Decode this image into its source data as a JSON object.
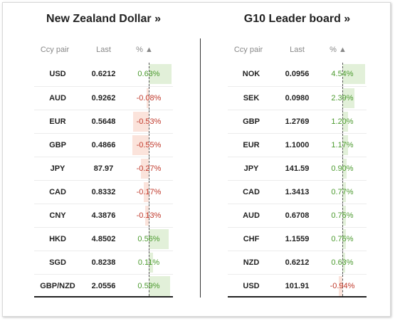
{
  "nzd": {
    "title": "New Zealand Dollar »",
    "headers": {
      "pair": "Ccy pair",
      "last": "Last",
      "pct": "% ▲"
    },
    "rows": [
      {
        "pair": "USD",
        "last": "0.6212",
        "pct": "0.63%",
        "value": 0.63
      },
      {
        "pair": "AUD",
        "last": "0.9262",
        "pct": "-0.08%",
        "value": -0.08
      },
      {
        "pair": "EUR",
        "last": "0.5648",
        "pct": "-0.53%",
        "value": -0.53
      },
      {
        "pair": "GBP",
        "last": "0.4866",
        "pct": "-0.55%",
        "value": -0.55
      },
      {
        "pair": "JPY",
        "last": "87.97",
        "pct": "-0.27%",
        "value": -0.27
      },
      {
        "pair": "CAD",
        "last": "0.8332",
        "pct": "-0.17%",
        "value": -0.17
      },
      {
        "pair": "CNY",
        "last": "4.3876",
        "pct": "-0.13%",
        "value": -0.13
      },
      {
        "pair": "HKD",
        "last": "4.8502",
        "pct": "0.56%",
        "value": 0.56
      },
      {
        "pair": "SGD",
        "last": "0.8238",
        "pct": "0.11%",
        "value": 0.11
      },
      {
        "pair": "GBP/NZD",
        "last": "2.0556",
        "pct": "0.59%",
        "value": 0.59
      }
    ]
  },
  "g10": {
    "title": "G10 Leader board »",
    "headers": {
      "pair": "Ccy pair",
      "last": "Last",
      "pct": "% ▲"
    },
    "rows": [
      {
        "pair": "NOK",
        "last": "0.0956",
        "pct": "4.54%",
        "value": 4.54
      },
      {
        "pair": "SEK",
        "last": "0.0980",
        "pct": "2.39%",
        "value": 2.39
      },
      {
        "pair": "GBP",
        "last": "1.2769",
        "pct": "1.20%",
        "value": 1.2
      },
      {
        "pair": "EUR",
        "last": "1.1000",
        "pct": "1.17%",
        "value": 1.17
      },
      {
        "pair": "JPY",
        "last": "141.59",
        "pct": "0.90%",
        "value": 0.9
      },
      {
        "pair": "CAD",
        "last": "1.3413",
        "pct": "0.77%",
        "value": 0.77
      },
      {
        "pair": "AUD",
        "last": "0.6708",
        "pct": "0.75%",
        "value": 0.75
      },
      {
        "pair": "CHF",
        "last": "1.1559",
        "pct": "0.75%",
        "value": 0.75
      },
      {
        "pair": "NZD",
        "last": "0.6212",
        "pct": "0.63%",
        "value": 0.63
      },
      {
        "pair": "USD",
        "last": "101.91",
        "pct": "-0.94%",
        "value": -0.94
      }
    ]
  },
  "colors": {
    "positive_text": "#4b9a2e",
    "negative_text": "#c0392b",
    "positive_bar": "#e2f0d9",
    "negative_bar": "#fbe3db"
  }
}
